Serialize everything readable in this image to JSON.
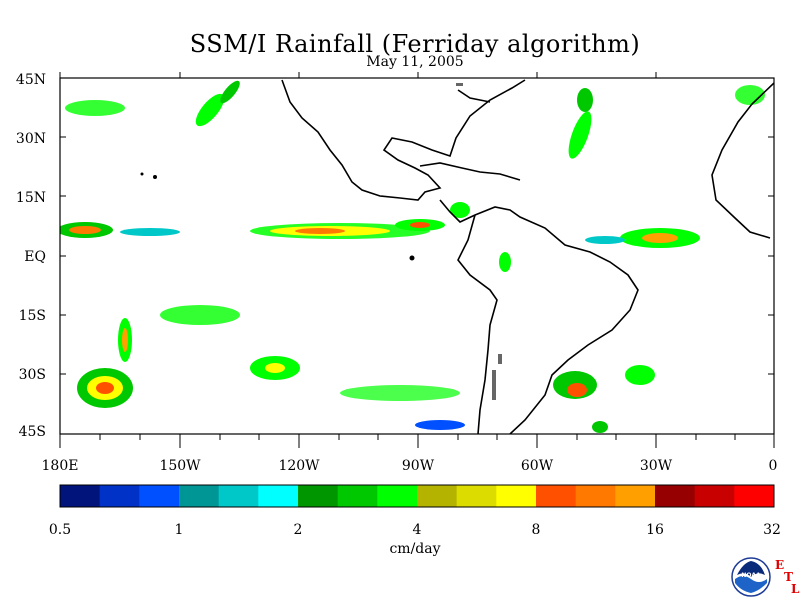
{
  "title": "SSM/I Rainfall (Ferriday algorithm)",
  "subtitle": "May 11, 2005",
  "lat_labels": [
    "45N",
    "30N",
    "15N",
    "EQ",
    "15S",
    "30S",
    "45S"
  ],
  "lon_labels": [
    "180E",
    "150W",
    "120W",
    "90W",
    "60W",
    "30W",
    "0"
  ],
  "colorbar": {
    "labels": [
      "0.5",
      "1",
      "2",
      "4",
      "8",
      "16",
      "32"
    ],
    "unit": "cm/day",
    "colors": [
      "#00147c",
      "#0032c8",
      "#0050ff",
      "#009696",
      "#00c8c8",
      "#00ffff",
      "#009600",
      "#00c800",
      "#00ff00",
      "#b4b400",
      "#dcdc00",
      "#ffff00",
      "#ff5000",
      "#ff7800",
      "#ffa000",
      "#960000",
      "#c80000",
      "#ff0000"
    ]
  },
  "logo": {
    "icon": "noaa-logo-icon",
    "text": "NOAA",
    "letters": [
      "E",
      "T",
      "L"
    ]
  }
}
